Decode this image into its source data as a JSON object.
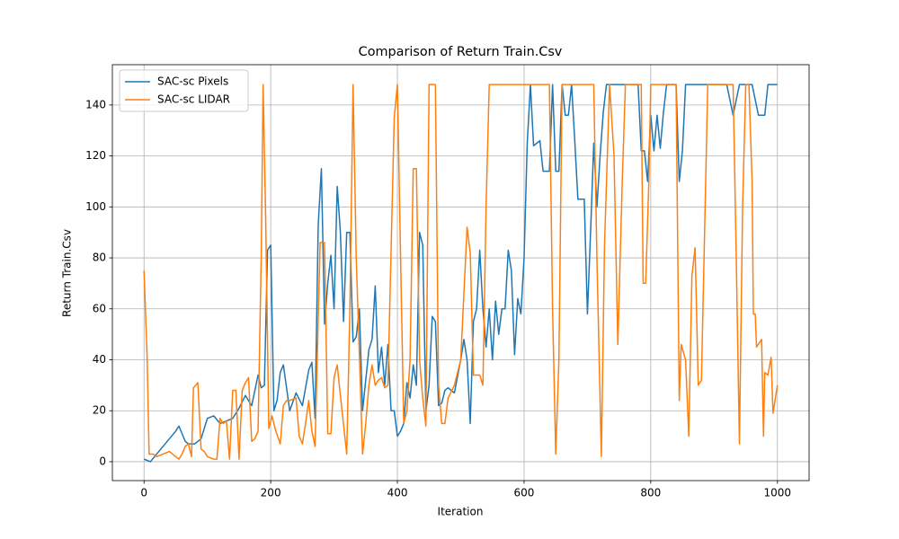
{
  "chart_data": {
    "type": "line",
    "title": "Comparison of Return Train.Csv",
    "x_label": "Iteration",
    "y_label": "Return Train.Csv",
    "xlim": [
      -50,
      1050
    ],
    "ylim": [
      -7.42,
      155.82
    ],
    "xticks": [
      0,
      200,
      400,
      600,
      800,
      1000
    ],
    "yticks": [
      0,
      20,
      40,
      60,
      80,
      100,
      120,
      140
    ],
    "grid": true,
    "legend": "upper-left",
    "series": [
      {
        "name": "SAC-sc Pixels",
        "color": "#1f77b4",
        "x": [
          0,
          10,
          20,
          30,
          40,
          50,
          55,
          60,
          65,
          70,
          80,
          90,
          100,
          110,
          120,
          130,
          140,
          150,
          160,
          170,
          180,
          185,
          190,
          195,
          200,
          205,
          210,
          215,
          220,
          230,
          240,
          250,
          260,
          265,
          270,
          275,
          280,
          285,
          290,
          295,
          300,
          305,
          310,
          315,
          320,
          325,
          330,
          335,
          340,
          345,
          350,
          355,
          360,
          365,
          370,
          375,
          380,
          385,
          390,
          395,
          400,
          405,
          410,
          415,
          420,
          425,
          430,
          435,
          440,
          445,
          450,
          455,
          460,
          465,
          470,
          475,
          480,
          490,
          500,
          505,
          510,
          515,
          520,
          525,
          530,
          535,
          540,
          545,
          550,
          555,
          560,
          565,
          570,
          575,
          580,
          585,
          590,
          595,
          600,
          605,
          610,
          615,
          625,
          630,
          640,
          645,
          650,
          655,
          660,
          665,
          670,
          675,
          680,
          685,
          695,
          700,
          705,
          710,
          715,
          720,
          725,
          730,
          740,
          750,
          760,
          770,
          780,
          785,
          790,
          795,
          800,
          805,
          810,
          815,
          820,
          825,
          835,
          840,
          845,
          850,
          855,
          870,
          880,
          890,
          920,
          930,
          940,
          960,
          970,
          980,
          985,
          1000
        ],
        "values": [
          1,
          0,
          3,
          6,
          9,
          12,
          14,
          11,
          8,
          7,
          7,
          9,
          17,
          18,
          15,
          16,
          17,
          21,
          26,
          22,
          34,
          29,
          30,
          83,
          85,
          20,
          24,
          35,
          38,
          20,
          27,
          22,
          36,
          39,
          17,
          93,
          115,
          54,
          70,
          81,
          60,
          108,
          90,
          55,
          90,
          90,
          47,
          49,
          60,
          20,
          32,
          44,
          48,
          69,
          35,
          45,
          30,
          46,
          20,
          20,
          10,
          12,
          15,
          31,
          25,
          38,
          30,
          90,
          85,
          20,
          30,
          57,
          55,
          22,
          23,
          28,
          29,
          27,
          40,
          48,
          40,
          15,
          55,
          60,
          83,
          60,
          45,
          60,
          40,
          63,
          50,
          60,
          60,
          83,
          75,
          42,
          64,
          58,
          80,
          125,
          148,
          124,
          126,
          114,
          114,
          148,
          114,
          114,
          148,
          136,
          136,
          148,
          126,
          103,
          103,
          58,
          90,
          125,
          100,
          120,
          137,
          148,
          148,
          148,
          148,
          148,
          148,
          122,
          122,
          110,
          136,
          122,
          136,
          123,
          137,
          148,
          148,
          148,
          110,
          122,
          148,
          148,
          148,
          148,
          148,
          136,
          148,
          148,
          136,
          136,
          148,
          148
        ]
      },
      {
        "name": "SAC-sc LIDAR",
        "color": "#ff7f0e",
        "x": [
          0,
          5,
          8,
          15,
          20,
          30,
          40,
          50,
          55,
          60,
          65,
          70,
          75,
          78,
          85,
          90,
          95,
          100,
          110,
          115,
          120,
          125,
          130,
          135,
          140,
          145,
          150,
          155,
          160,
          165,
          170,
          175,
          180,
          185,
          188,
          192,
          197,
          202,
          208,
          215,
          220,
          225,
          230,
          240,
          245,
          250,
          255,
          260,
          265,
          270,
          278,
          285,
          290,
          295,
          300,
          305,
          310,
          320,
          325,
          330,
          335,
          345,
          350,
          355,
          360,
          365,
          370,
          375,
          380,
          385,
          395,
          400,
          405,
          410,
          415,
          420,
          425,
          430,
          435,
          440,
          445,
          450,
          455,
          460,
          465,
          470,
          475,
          480,
          490,
          500,
          510,
          515,
          520,
          530,
          535,
          540,
          545,
          600,
          610,
          640,
          645,
          650,
          655,
          660,
          710,
          715,
          722,
          727,
          735,
          742,
          748,
          755,
          760,
          785,
          788,
          792,
          797,
          800,
          840,
          845,
          848,
          855,
          860,
          865,
          870,
          875,
          880,
          890,
          930,
          935,
          940,
          945,
          950,
          955,
          960,
          962,
          965,
          967,
          975,
          978,
          980,
          985,
          990,
          993,
          1000
        ],
        "values": [
          75,
          40,
          3,
          3,
          2,
          3,
          4,
          2,
          1,
          3,
          6,
          7,
          2,
          29,
          31,
          5,
          4,
          2,
          1,
          1,
          17,
          15,
          16,
          1,
          28,
          28,
          1,
          28,
          31,
          33,
          8,
          9,
          12,
          80,
          148,
          96,
          13,
          18,
          12,
          7,
          22,
          24,
          24,
          25,
          10,
          7,
          15,
          24,
          12,
          6,
          86,
          86,
          11,
          11,
          33,
          38,
          26,
          3,
          60,
          148,
          80,
          3,
          15,
          30,
          38,
          30,
          32,
          33,
          29,
          30,
          135,
          148,
          80,
          15,
          20,
          40,
          115,
          115,
          40,
          25,
          14,
          148,
          148,
          148,
          30,
          15,
          15,
          25,
          30,
          40,
          92,
          82,
          34,
          34,
          30,
          100,
          148,
          148,
          148,
          148,
          60,
          3,
          40,
          148,
          148,
          80,
          2,
          85,
          148,
          120,
          46,
          110,
          148,
          148,
          70,
          70,
          110,
          148,
          148,
          24,
          46,
          40,
          10,
          73,
          84,
          30,
          32,
          148,
          148,
          80,
          7,
          100,
          148,
          148,
          110,
          58,
          58,
          45,
          48,
          10,
          35,
          34,
          41,
          19,
          30
        ]
      }
    ]
  }
}
